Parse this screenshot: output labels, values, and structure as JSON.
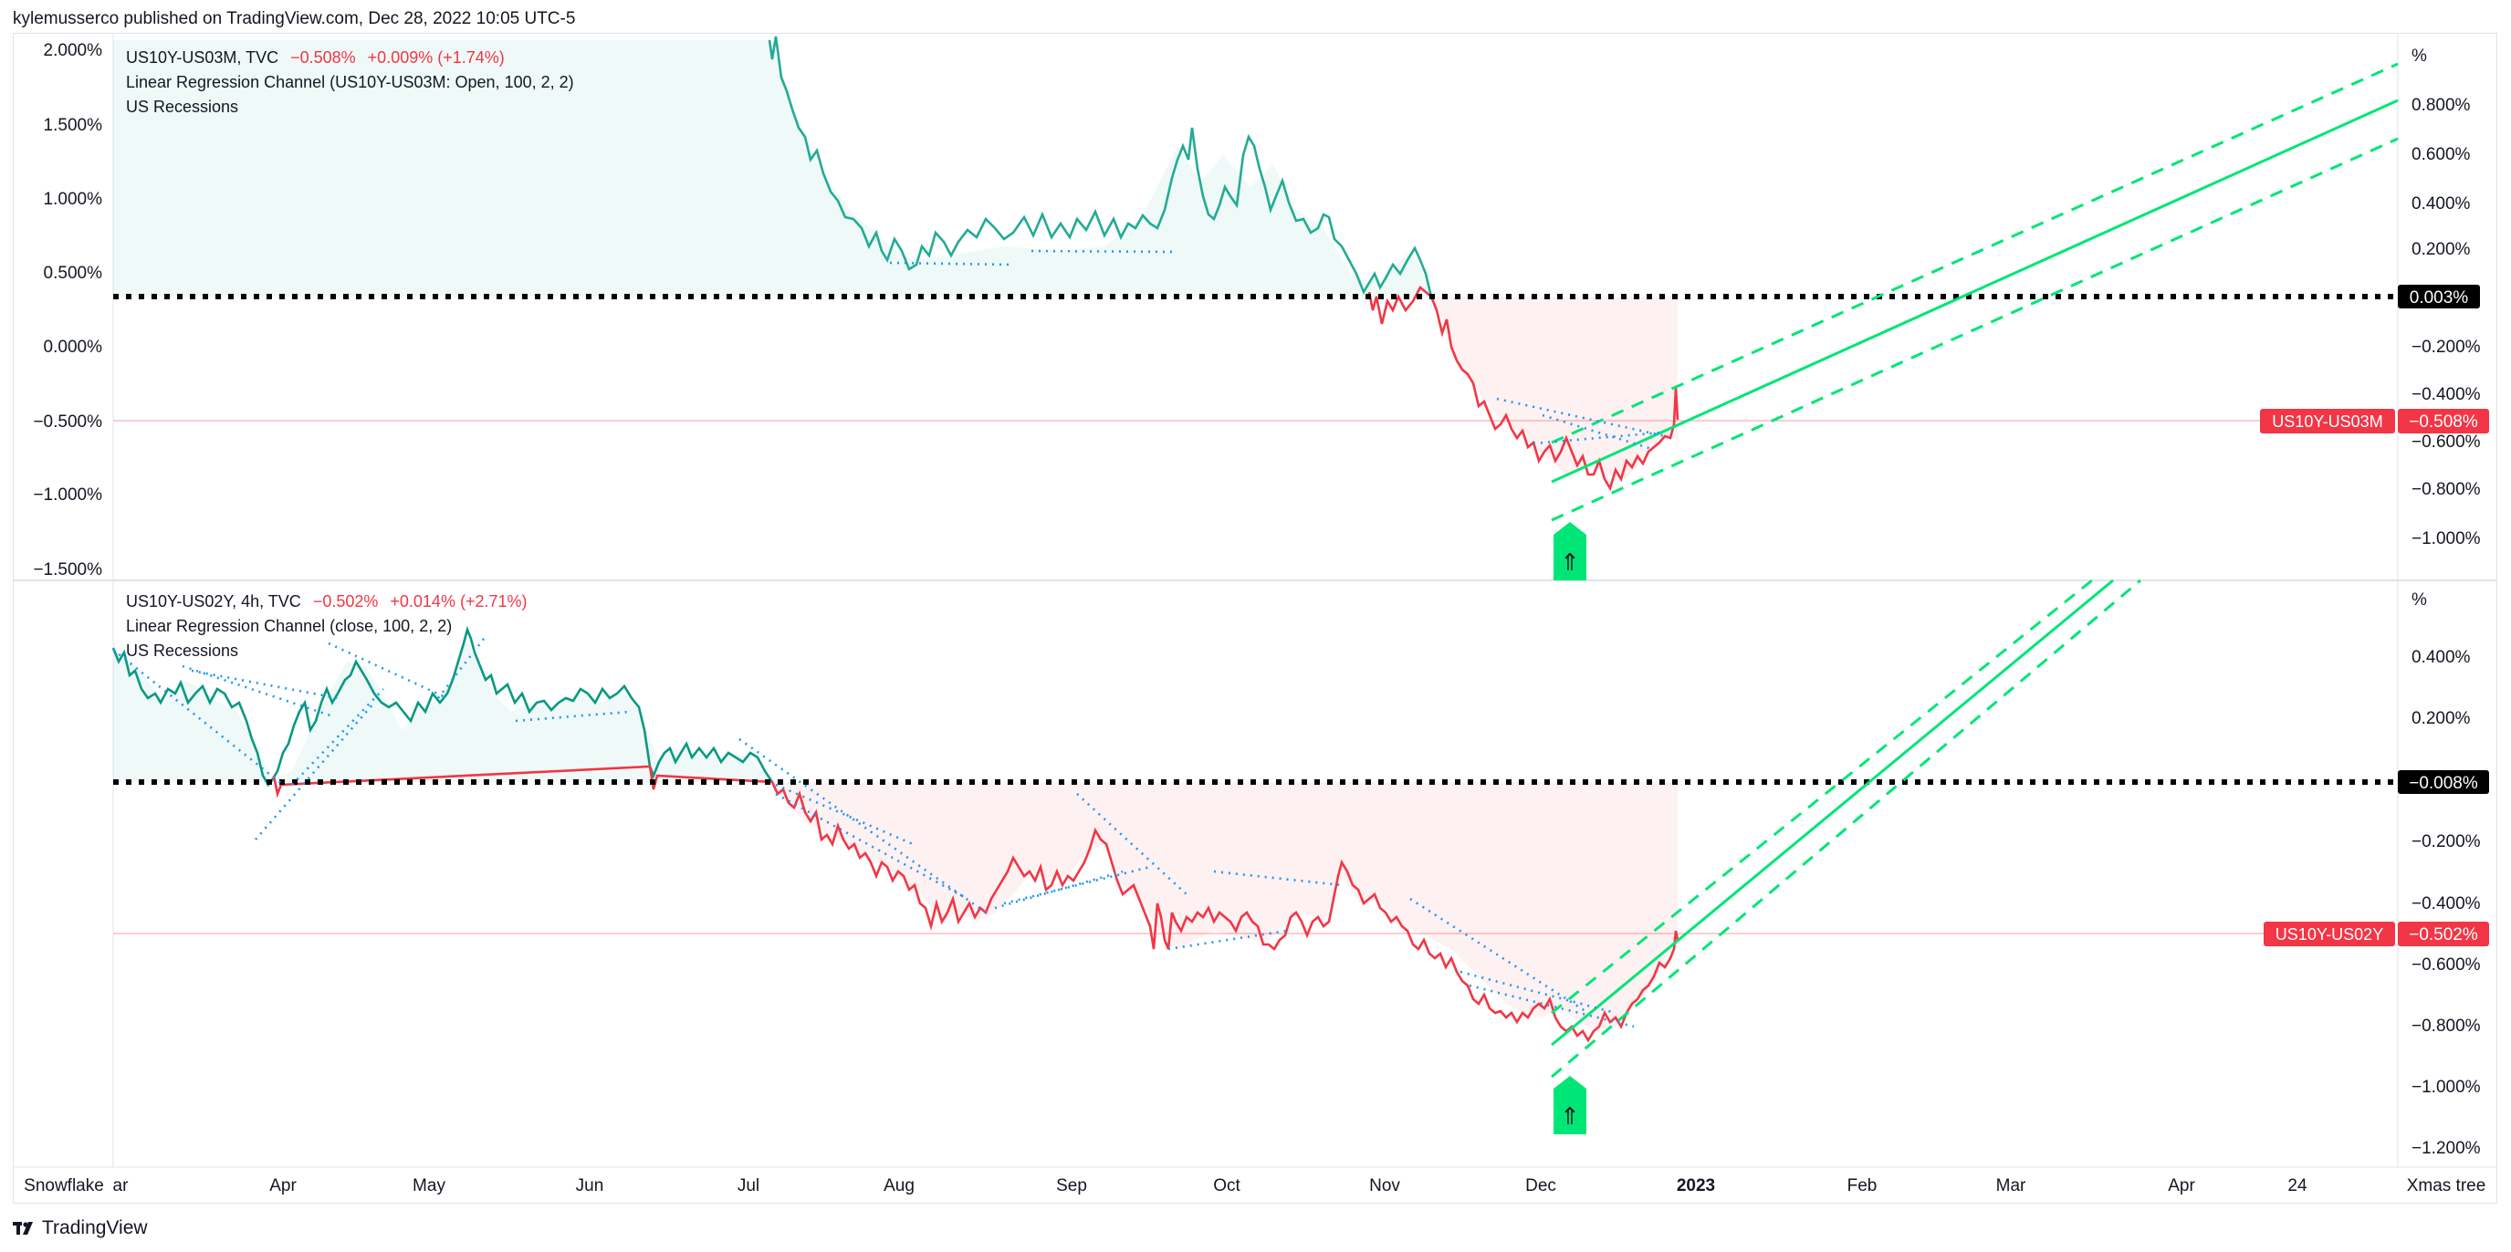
{
  "header": {
    "published_line": "kylemusserco published on TradingView.com, Dec 28, 2022 10:05 UTC-5"
  },
  "footer": {
    "brand": "TradingView",
    "logo_icon": "tradingview-logo-icon"
  },
  "colors": {
    "green": "#22ab94",
    "red": "#f23645",
    "channel": "#00e676",
    "dotted": "#2196f3",
    "level": "#000000"
  },
  "panes": [
    {
      "legend": {
        "symbol": "US10Y-US03M, TVC",
        "price": "−0.508%",
        "change": "+0.009% (+1.74%)",
        "indicator1": "Linear Regression Channel (US10Y-US03M: Open, 100, 2, 2)",
        "indicator2": "US Recessions"
      },
      "left_axis_ticks": [
        "2.000%",
        "1.500%",
        "1.000%",
        "0.500%",
        "0.000%",
        "−0.500%",
        "−1.000%",
        "−1.500%"
      ],
      "right_axis_ticks": [
        "%",
        "0.800%",
        "0.600%",
        "0.400%",
        "0.200%",
        "−0.200%",
        "−0.400%",
        "−0.600%",
        "−0.800%",
        "−1.000%"
      ],
      "level_label": "0.003%",
      "price_tag_symbol": "US10Y-US03M",
      "price_tag_value": "−0.508%"
    },
    {
      "legend": {
        "symbol": "US10Y-US02Y, 4h, TVC",
        "price": "−0.502%",
        "change": "+0.014% (+2.71%)",
        "indicator1": "Linear Regression Channel (close, 100, 2, 2)",
        "indicator2": "US Recessions"
      },
      "right_axis_ticks": [
        "%",
        "0.400%",
        "0.200%",
        "−0.200%",
        "−0.400%",
        "−0.600%",
        "−0.800%",
        "−1.000%",
        "−1.200%"
      ],
      "level_label": "−0.008%",
      "price_tag_symbol": "US10Y-US02Y",
      "price_tag_value": "−0.502%"
    }
  ],
  "time_axis": [
    "Snowflake",
    "ar",
    "Apr",
    "May",
    "Jun",
    "Jul",
    "Aug",
    "Sep",
    "Oct",
    "Nov",
    "Dec",
    "2023",
    "Feb",
    "Mar",
    "Apr",
    "24",
    "Xmas tree"
  ],
  "chart_data": [
    {
      "type": "line",
      "title": "US10Y-US03M, TVC",
      "y_unit": "%",
      "ylim": [
        -1.55,
        2.05
      ],
      "x": [
        "Mar",
        "Apr",
        "May",
        "Jun",
        "Jul",
        "Jul",
        "Aug",
        "Aug",
        "Sep",
        "Sep",
        "Oct",
        "Oct",
        "Nov",
        "Nov",
        "Nov",
        "Dec",
        "Dec",
        "Dec"
      ],
      "series": [
        {
          "name": "US10Y-US03M",
          "values": [
            null,
            null,
            null,
            null,
            2.0,
            1.35,
            0.9,
            0.75,
            0.78,
            0.8,
            1.4,
            0.9,
            0.55,
            0.4,
            -0.3,
            -0.75,
            -0.8,
            -0.35
          ]
        }
      ],
      "horizontal_level": 0.003,
      "last_value": -0.508
    },
    {
      "type": "line",
      "title": "US10Y-US02Y, 4h, TVC",
      "y_unit": "%",
      "ylim": [
        -1.25,
        0.5
      ],
      "x": [
        "Mar",
        "Mar",
        "Apr",
        "Apr",
        "May",
        "May",
        "Jun",
        "Jun",
        "Jul",
        "Jul",
        "Aug",
        "Sep",
        "Sep",
        "Oct",
        "Oct",
        "Nov",
        "Nov",
        "Dec",
        "Dec",
        "Dec"
      ],
      "series": [
        {
          "name": "US10Y-US02Y",
          "values": [
            0.4,
            0.3,
            0.0,
            0.25,
            0.2,
            0.45,
            0.25,
            0.25,
            -0.05,
            -0.2,
            -0.45,
            -0.3,
            -0.25,
            -0.5,
            -0.35,
            -0.45,
            -0.7,
            -0.8,
            -0.85,
            -0.5
          ]
        }
      ],
      "horizontal_level": -0.008,
      "last_value": -0.502
    }
  ]
}
